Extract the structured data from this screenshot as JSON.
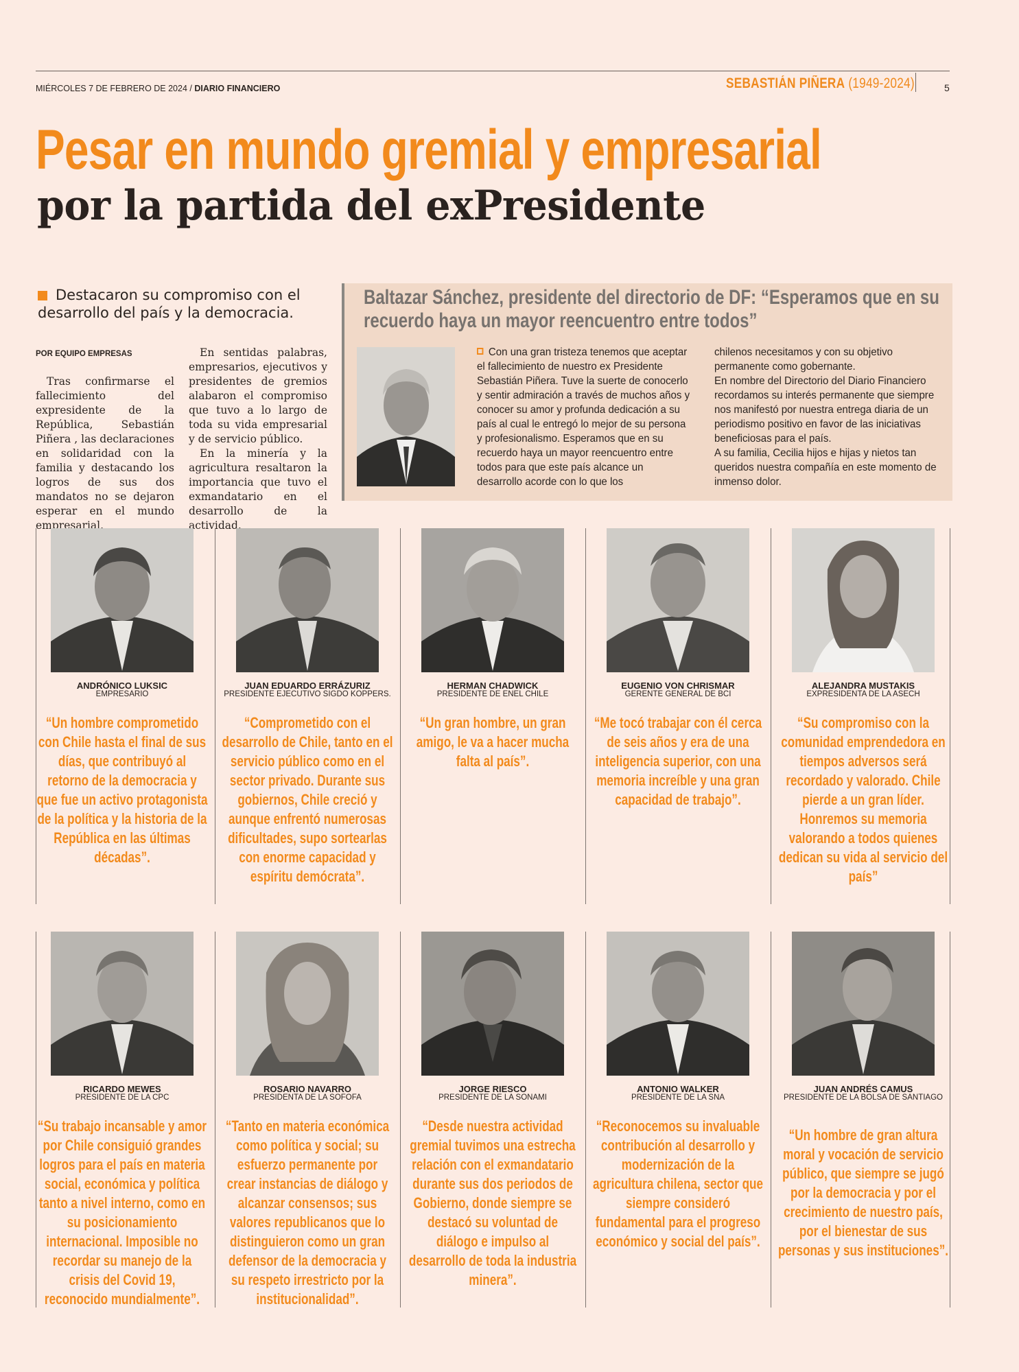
{
  "header": {
    "date": "MIÉRCOLES 7 DE FEBRERO DE 2024 /",
    "paper": "DIARIO FINANCIERO",
    "section_name": "SEBASTIÁN PIÑERA",
    "section_years": "(1949-2024)",
    "page": "5"
  },
  "headline": {
    "line1": "Pesar en mundo gremial y empresarial",
    "line2": "por la partida del exPresidente"
  },
  "lead": "Destacaron su compromiso con el desarrollo del país y la democracia.",
  "byline": "POR EQUIPO EMPRESAS",
  "article": {
    "col1": "Tras confirmarse el fallecimiento del expresidente de la República, Sebastián Piñera , las declaraciones en solidaridad con la familia y destacando los logros de sus dos mandatos no se dejaron esperar en el mundo empresarial.",
    "col2_p1": "En sentidas palabras, empresarios, ejecutivos y presidentes de gremios alabaron el compromiso que tuvo a lo largo de toda su vida empresarial y de servicio público.",
    "col2_p2": "En la minería y la agricultura resaltaron la importancia que tuvo el exmandatario en el desarrollo de la actividad."
  },
  "box": {
    "title": "Baltazar Sánchez, presidente del directorio de DF: “Esperamos que en su recuerdo haya un mayor reencuentro entre todos”",
    "col1": "Con una gran tristeza tenemos que aceptar el fallecimiento de nuestro ex Presidente Sebastián Piñera. Tuve la suerte de conocerlo y sentir admiración a través de muchos años y conocer su amor y profunda dedicación a su país al cual le entregó lo mejor de su persona y profesionalismo. Esperamos que en su recuerdo haya un mayor reencuentro entre todos para que este país alcance un desarrollo acorde con lo que los",
    "col2_p1": "chilenos necesitamos y con su objetivo permanente como gobernante.",
    "col2_p2": "En nombre del Directorio del Diario Financiero recordamos su interés permanente que siempre nos manifestó por nuestra entrega diaria de un periodismo positivo en favor de las iniciativas beneficiosas para el país.",
    "col2_p3": "A su familia, Cecilia hijos e hijas y nietos tan queridos nuestra compañía en este momento de inmenso dolor."
  },
  "cards": [
    {
      "name": "ANDRÓNICO LUKSIC",
      "role": "EMPRESARIO",
      "quote": "“Un hombre comprometido con Chile hasta el final de sus días, que contribuyó al retorno de la democracia y que fue un activo protagonista de la política y la historia de la República en las últimas décadas”."
    },
    {
      "name": "JUAN EDUARDO ERRÁZURIZ",
      "role": "PRESIDENTE EJECUTIVO SIGDO KOPPERS.",
      "quote": "“Comprometido con el desarrollo de Chile, tanto en el servicio público como en el sector privado. Durante sus gobiernos, Chile creció y aunque enfrentó numerosas dificultades, supo sortearlas con enorme capacidad y espíritu demócrata”."
    },
    {
      "name": "HERMAN CHADWICK",
      "role": "PRESIDENTE DE ENEL CHILE",
      "quote": "“Un gran hombre, un gran amigo, le va a hacer mucha falta al país”."
    },
    {
      "name": "EUGENIO VON CHRISMAR",
      "role": "GERENTE GENERAL DE BCI",
      "quote": "“Me tocó trabajar con él cerca de seis años y era de una inteligencia superior, con una memoria increíble y una gran capacidad de trabajo”."
    },
    {
      "name": "ALEJANDRA MUSTAKIS",
      "role": "EXPRESIDENTA DE LA ASECH",
      "quote": "“Su compromiso con la comunidad emprendedora en tiempos adversos será recordado y valorado. Chile pierde a un gran líder. Honremos su memoria valorando a todos quienes dedican su vida al servicio del país”"
    },
    {
      "name": "RICARDO MEWES",
      "role": "PRESIDENTE DE LA CPC",
      "quote": "“Su trabajo incansable y amor por Chile consiguió grandes logros para el país en materia social, económica y política tanto a nivel interno, como en su posicionamiento internacional. Imposible no recordar su manejo de la crisis del Covid 19, reconocido mundialmente”."
    },
    {
      "name": "ROSARIO NAVARRO",
      "role": "PRESIDENTA DE LA SOFOFA",
      "quote": "“Tanto en materia económica como política y social; su esfuerzo permanente por crear instancias de diálogo y alcanzar consensos; sus valores republicanos que lo distinguieron como un gran defensor de la democracia y su respeto irrestricto por la institucionalidad”."
    },
    {
      "name": "JORGE RIESCO",
      "role": "PRESIDENTE DE LA SONAMI",
      "quote": "“Desde nuestra actividad gremial tuvimos una estrecha relación con el exmandatario durante sus dos periodos de Gobierno, donde siempre se destacó su voluntad de diálogo e impulso al desarrollo de toda la industria minera”."
    },
    {
      "name": "ANTONIO WALKER",
      "role": "PRESIDENTE DE LA SNA",
      "quote": "“Reconocemos su invaluable contribución al desarrollo y modernización de la agricultura chilena, sector que siempre consideró fundamental para el progreso económico y social del país”."
    },
    {
      "name": "JUAN ANDRÉS CAMUS",
      "role": "PRESIDENTE DE LA BOLSA DE SANTIAGO",
      "quote": "“Un hombre de gran altura moral y vocación de servicio público, que siempre se jugó por la democracia y por el crecimiento de nuestro país, por el bienestar de sus personas y sus instituciones”."
    }
  ]
}
